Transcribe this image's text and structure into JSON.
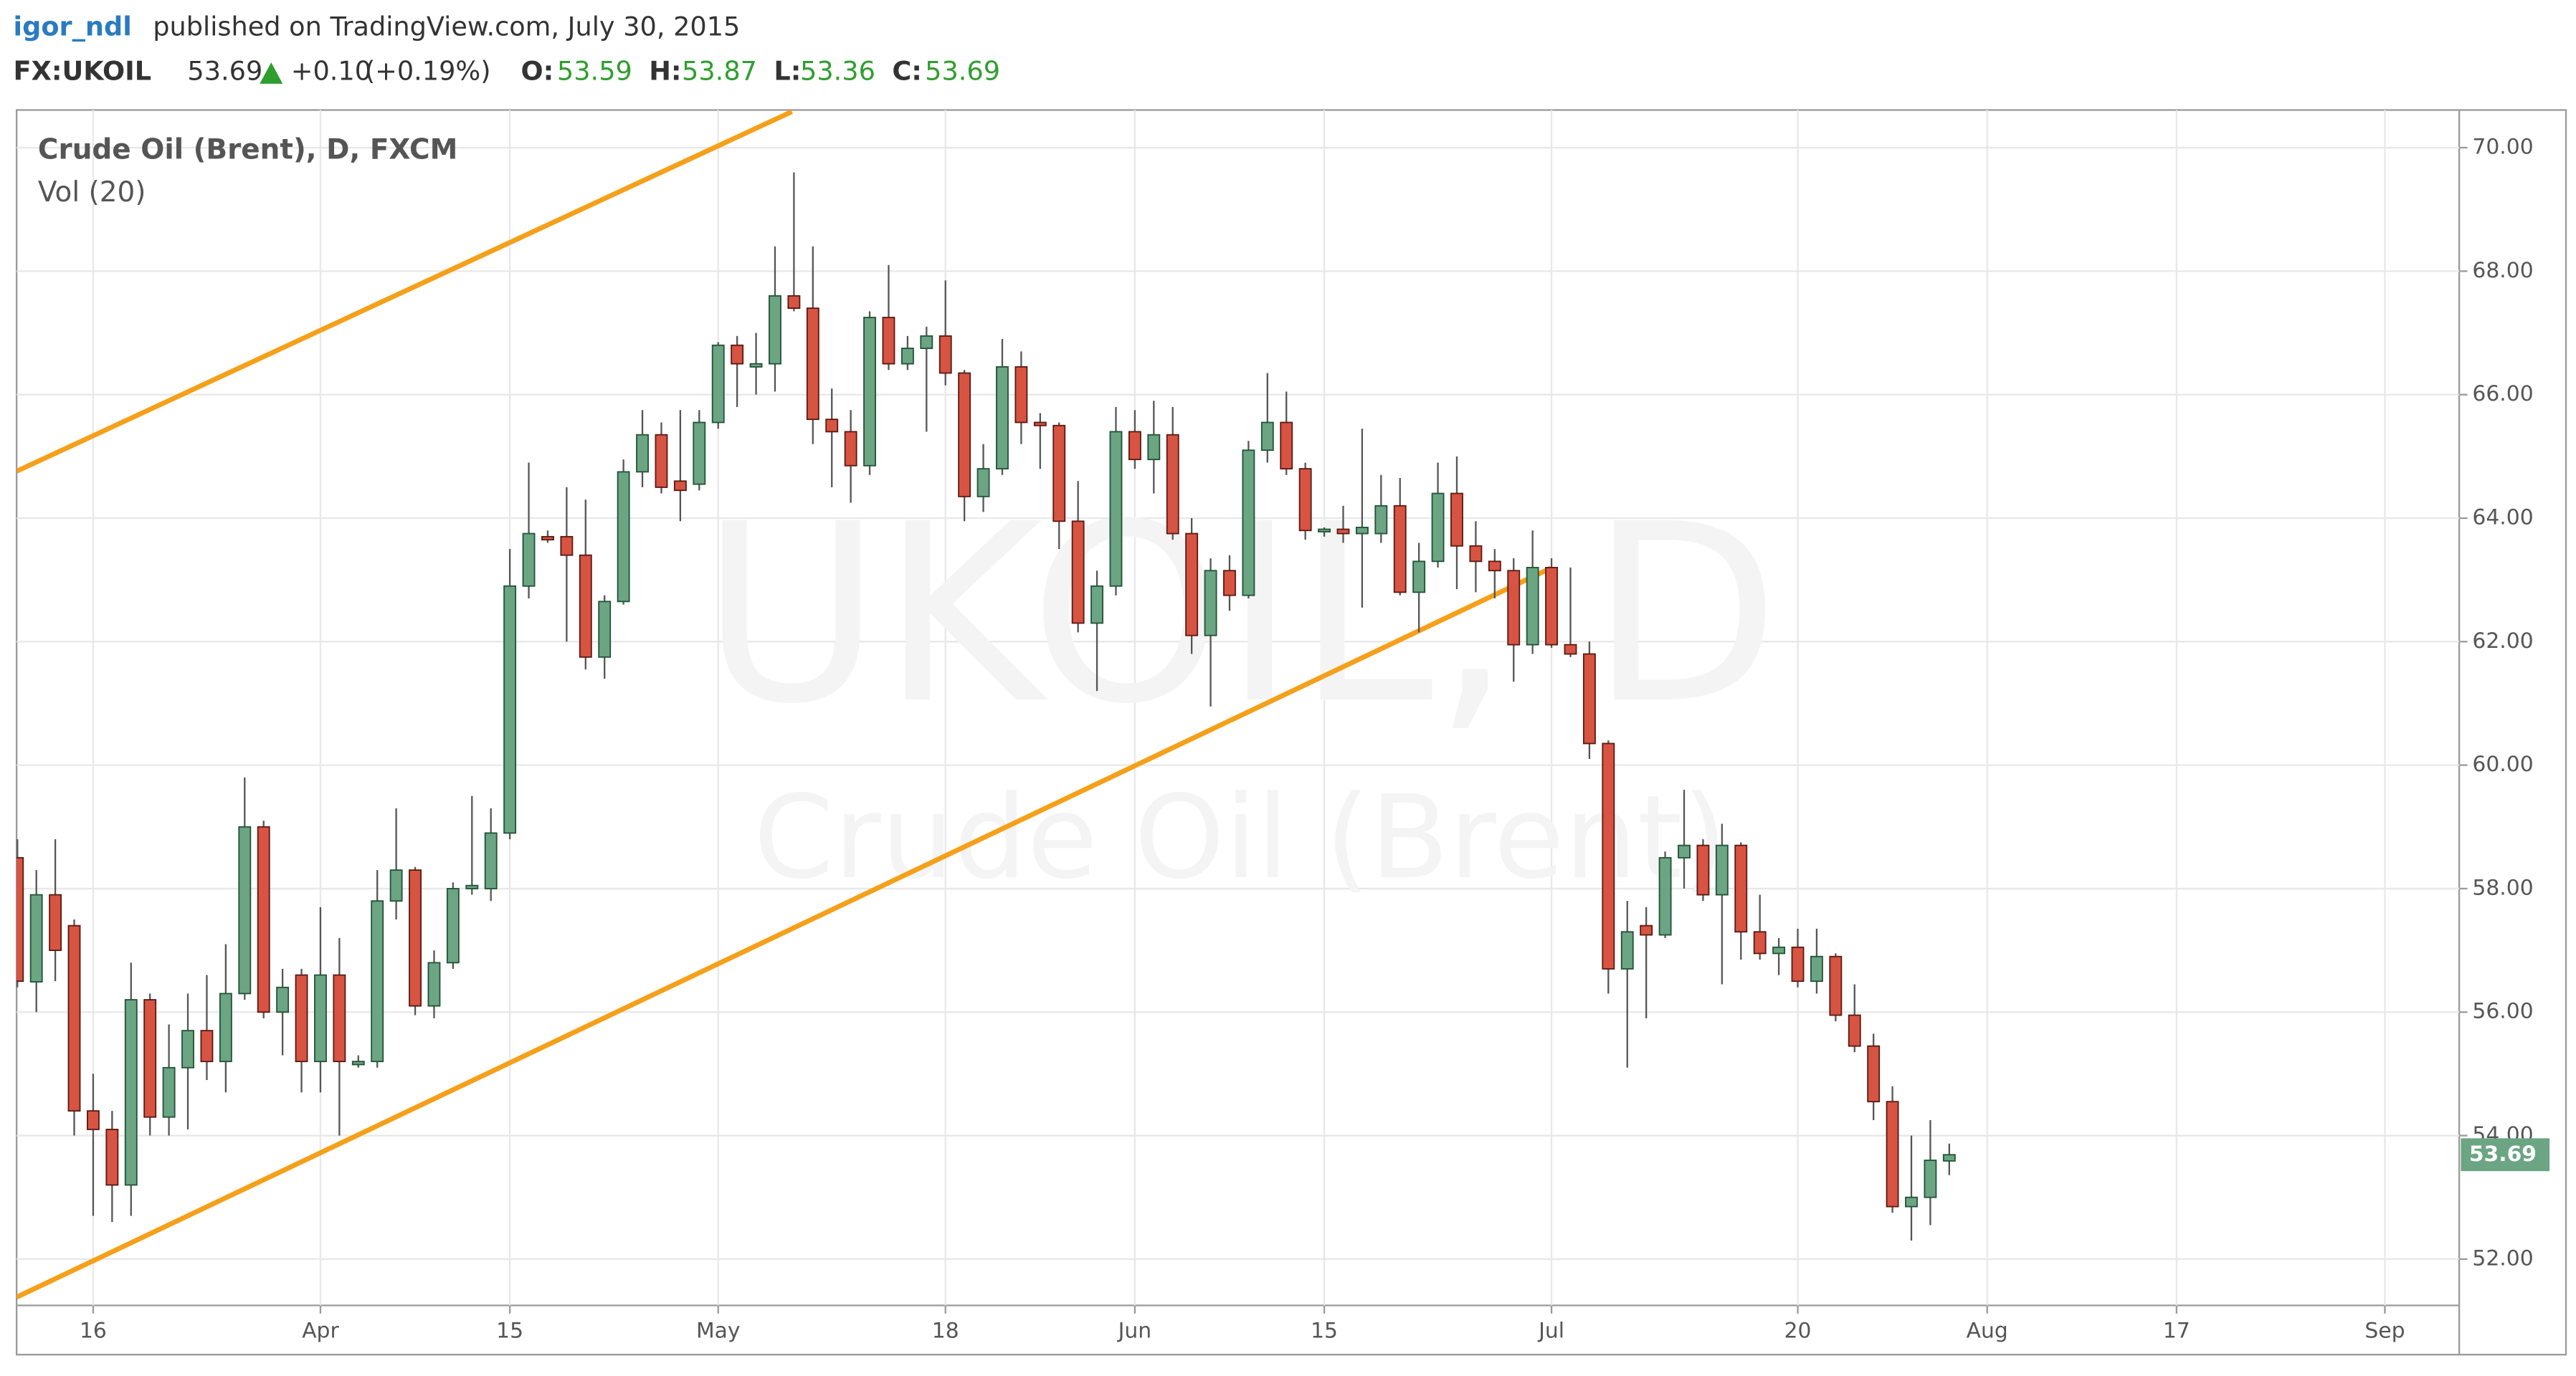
{
  "header": {
    "publisher": "igor_ndl",
    "published": "published on TradingView.com, July 30, 2015",
    "symbol": "FX:UKOIL",
    "change": "+0.10",
    "change_pct": "(+0.19%)",
    "open_label": "O:",
    "high_label": "H:",
    "low_label": "L:",
    "close_label": "C:"
  },
  "chart_data": {
    "type": "candlestick",
    "title": "Crude Oil (Brent), D, FXCM",
    "subtitle": "Vol (20)",
    "watermark": "UKOIL, D",
    "watermark_sub": "Crude Oil (Brent)",
    "categories": [
      null,
      null,
      null,
      null,
      "16",
      null,
      null,
      null,
      null,
      null,
      null,
      null,
      null,
      null,
      null,
      null,
      "Apr",
      null,
      null,
      null,
      null,
      null,
      null,
      null,
      null,
      null,
      "15",
      null,
      null,
      null,
      null,
      null,
      null,
      null,
      null,
      null,
      null,
      "May",
      null,
      null,
      null,
      null,
      null,
      null,
      null,
      null,
      null,
      null,
      null,
      "18",
      null,
      null,
      null,
      null,
      null,
      null,
      null,
      null,
      null,
      "Jun",
      null,
      null,
      null,
      null,
      null,
      null,
      null,
      null,
      null,
      "15",
      null,
      null,
      null,
      null,
      null,
      null,
      null,
      null,
      null,
      null,
      null,
      "Jul",
      null,
      null,
      null,
      null,
      null,
      null,
      null,
      null,
      null,
      null,
      null,
      null,
      "20",
      null,
      null,
      null,
      null,
      null,
      null,
      null,
      null,
      null,
      "Aug",
      null,
      null,
      null,
      null,
      null,
      null,
      null,
      null,
      null,
      "17",
      null,
      null,
      null,
      null,
      null,
      null,
      null,
      null,
      null,
      null,
      "Sep",
      null,
      null,
      null
    ],
    "open": [
      58.5,
      56.49,
      57.9,
      57.4,
      54.4,
      54.1,
      53.2,
      56.2,
      54.3,
      55.1,
      55.7,
      55.2,
      56.3,
      59.0,
      56.0,
      56.6,
      55.2,
      56.6,
      55.15,
      55.2,
      57.8,
      58.3,
      56.1,
      56.8,
      58.0,
      58.0,
      58.9,
      62.9,
      63.7,
      63.7,
      63.4,
      61.75,
      62.65,
      64.75,
      65.35,
      64.6,
      64.55,
      65.55,
      66.8,
      66.45,
      66.5,
      67.6,
      67.4,
      65.6,
      65.4,
      64.85,
      67.25,
      66.5,
      66.75,
      66.95,
      66.35,
      64.35,
      64.8,
      66.45,
      65.55,
      65.5,
      63.95,
      62.3,
      62.9,
      65.4,
      64.95,
      65.35,
      63.75,
      62.1,
      63.15,
      62.75,
      65.1,
      65.55,
      64.8,
      63.78,
      63.82,
      63.75,
      63.75,
      64.2,
      62.8,
      63.3,
      64.4,
      63.55,
      63.3,
      63.15,
      61.95,
      63.2,
      61.95,
      61.8,
      60.35,
      56.7,
      57.4,
      57.25,
      58.5,
      58.7,
      57.9,
      58.7,
      57.3,
      56.95,
      57.05,
      56.5,
      56.9,
      55.95,
      55.45,
      54.55,
      52.85,
      53.0,
      53.59,
      null,
      null,
      null,
      null,
      null,
      null,
      null,
      null,
      null,
      null,
      null,
      null,
      null,
      null,
      null,
      null,
      null,
      null,
      null,
      null,
      null,
      null,
      null,
      null,
      null,
      null
    ],
    "high": [
      58.8,
      58.3,
      58.8,
      57.5,
      55.0,
      54.4,
      56.8,
      56.3,
      55.8,
      56.3,
      56.6,
      57.1,
      59.8,
      59.1,
      56.7,
      56.7,
      57.7,
      57.2,
      55.3,
      58.3,
      59.3,
      58.35,
      57.0,
      58.1,
      59.5,
      59.3,
      63.5,
      64.9,
      63.8,
      64.5,
      64.3,
      62.75,
      64.95,
      65.75,
      65.55,
      65.75,
      65.75,
      66.85,
      66.95,
      67.0,
      68.4,
      69.6,
      68.4,
      66.1,
      65.75,
      67.35,
      68.1,
      66.95,
      67.1,
      67.85,
      66.4,
      65.2,
      66.9,
      66.7,
      65.7,
      65.55,
      64.6,
      63.15,
      65.8,
      65.75,
      65.9,
      65.8,
      64.0,
      63.35,
      63.4,
      65.25,
      66.35,
      66.05,
      64.9,
      63.85,
      64.2,
      65.45,
      64.7,
      64.65,
      63.6,
      64.9,
      65.0,
      63.95,
      63.5,
      63.35,
      63.8,
      63.35,
      63.2,
      62.0,
      60.4,
      57.8,
      57.7,
      58.6,
      59.6,
      58.8,
      59.05,
      58.75,
      57.9,
      57.2,
      57.35,
      57.35,
      56.95,
      56.45,
      55.65,
      54.8,
      54.0,
      54.25,
      53.87,
      null,
      null,
      null,
      null,
      null,
      null,
      null,
      null,
      null,
      null,
      null,
      null,
      null,
      null,
      null,
      null,
      null,
      null,
      null,
      null,
      null,
      null,
      null,
      null,
      null,
      null
    ],
    "low": [
      56.4,
      56.0,
      56.5,
      54.0,
      52.7,
      52.6,
      52.7,
      54.0,
      54.0,
      54.1,
      54.9,
      54.7,
      56.2,
      55.9,
      55.3,
      54.7,
      54.7,
      54.0,
      55.1,
      55.1,
      57.5,
      55.95,
      55.9,
      56.7,
      57.9,
      57.8,
      58.8,
      62.7,
      63.6,
      62.0,
      61.55,
      61.4,
      62.6,
      64.5,
      64.4,
      63.95,
      64.45,
      65.45,
      65.8,
      66.0,
      66.05,
      67.35,
      65.2,
      64.5,
      64.25,
      64.7,
      66.4,
      66.4,
      65.4,
      66.15,
      63.95,
      64.1,
      64.7,
      65.2,
      64.8,
      63.5,
      62.15,
      61.2,
      62.75,
      64.8,
      64.4,
      63.65,
      61.8,
      60.95,
      62.5,
      62.7,
      64.9,
      64.7,
      63.65,
      63.7,
      63.6,
      62.55,
      63.6,
      62.75,
      62.15,
      63.2,
      62.85,
      62.8,
      62.7,
      61.35,
      61.8,
      61.9,
      61.75,
      60.1,
      56.3,
      55.1,
      55.9,
      57.2,
      58.0,
      57.8,
      56.45,
      56.85,
      56.85,
      56.6,
      56.4,
      56.3,
      55.85,
      55.35,
      54.25,
      52.75,
      52.3,
      52.55,
      53.36,
      null,
      null,
      null,
      null,
      null,
      null,
      null,
      null,
      null,
      null,
      null,
      null,
      null,
      null,
      null,
      null,
      null,
      null,
      null,
      null,
      null,
      null,
      null,
      null,
      null,
      null
    ],
    "close": [
      56.5,
      57.9,
      57.0,
      54.4,
      54.1,
      53.2,
      56.2,
      54.3,
      55.1,
      55.7,
      55.2,
      56.3,
      59.0,
      56.0,
      56.4,
      55.2,
      56.6,
      55.2,
      55.2,
      57.8,
      58.3,
      56.1,
      56.8,
      58.0,
      58.05,
      58.9,
      62.9,
      63.75,
      63.65,
      63.4,
      61.75,
      62.65,
      64.75,
      65.35,
      64.5,
      64.45,
      65.55,
      66.8,
      66.5,
      66.5,
      67.6,
      67.4,
      65.6,
      65.4,
      64.85,
      67.25,
      66.5,
      66.75,
      66.95,
      66.35,
      64.35,
      64.8,
      66.45,
      65.55,
      65.5,
      63.95,
      62.3,
      62.9,
      65.4,
      64.95,
      65.35,
      63.75,
      62.1,
      63.15,
      62.75,
      65.1,
      65.55,
      64.8,
      63.8,
      63.82,
      63.75,
      63.85,
      64.2,
      62.8,
      63.3,
      64.4,
      63.55,
      63.3,
      63.15,
      61.95,
      63.2,
      61.95,
      61.8,
      60.35,
      56.7,
      57.3,
      57.25,
      58.5,
      58.7,
      57.9,
      58.7,
      57.3,
      56.95,
      57.05,
      56.5,
      56.9,
      55.95,
      55.45,
      54.55,
      52.85,
      53.0,
      53.6,
      53.69,
      null,
      null,
      null,
      null,
      null,
      null,
      null,
      null,
      null,
      null,
      null,
      null,
      null,
      null,
      null,
      null,
      null,
      null,
      null,
      null,
      null,
      null,
      null,
      null,
      null,
      null
    ],
    "up_color": "#6ba583",
    "down_color": "#d75442",
    "ylim": [
      51.25,
      70.61
    ],
    "yticks": [
      {
        "value": 52,
        "label": "52.00"
      },
      {
        "value": 54,
        "label": "54.00"
      },
      {
        "value": 56,
        "label": "56.00"
      },
      {
        "value": 58,
        "label": "58.00"
      },
      {
        "value": 60,
        "label": "60.00"
      },
      {
        "value": 62,
        "label": "62.00"
      },
      {
        "value": 64,
        "label": "64.00"
      },
      {
        "value": 66,
        "label": "66.00"
      },
      {
        "value": 68,
        "label": "68.00"
      },
      {
        "value": 70,
        "label": "70.00"
      }
    ],
    "grid": true
  }
}
